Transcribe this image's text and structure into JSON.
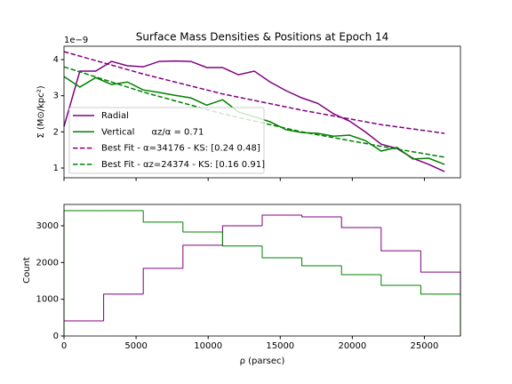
{
  "chart_data": [
    {
      "type": "line",
      "title": "Surface Mass Densities & Positions at Epoch 14",
      "ylabel": "Σ (M⊙/kpc²)",
      "offset_text": "1e−9",
      "xlim": [
        0,
        27500
      ],
      "xticks": [
        0,
        5000,
        10000,
        15000,
        20000,
        25000
      ],
      "ylim": [
        0.73,
        4.37
      ],
      "yticks": [
        1,
        2,
        3,
        4
      ],
      "series": [
        {
          "name": "Radial",
          "color": "#800080",
          "style": "solid",
          "x": [
            0,
            1100,
            2200,
            3300,
            4400,
            5500,
            6600,
            7700,
            8800,
            9900,
            11000,
            12100,
            13200,
            14300,
            15400,
            16500,
            17600,
            18700,
            19800,
            20900,
            22000,
            23100,
            24200,
            25300,
            26400
          ],
          "values": [
            2.15,
            3.68,
            3.68,
            3.95,
            3.83,
            3.8,
            3.95,
            3.96,
            3.95,
            3.78,
            3.78,
            3.58,
            3.68,
            3.38,
            3.14,
            2.94,
            2.79,
            2.5,
            2.3,
            2.0,
            1.66,
            1.54,
            1.27,
            1.1,
            0.9
          ]
        },
        {
          "name": "Vertical      αz/α = 0.71",
          "color": "#008000",
          "style": "solid",
          "x": [
            0,
            1100,
            2200,
            3300,
            4400,
            5500,
            6600,
            7700,
            8800,
            9900,
            11000,
            12100,
            13200,
            14300,
            15400,
            16500,
            17600,
            18700,
            19800,
            20900,
            22000,
            23100,
            24200,
            25300,
            26400
          ],
          "values": [
            3.53,
            3.24,
            3.5,
            3.31,
            3.38,
            3.16,
            3.09,
            3.01,
            2.94,
            2.74,
            2.89,
            2.55,
            2.42,
            2.28,
            2.06,
            1.98,
            1.96,
            1.88,
            1.91,
            1.76,
            1.47,
            1.57,
            1.25,
            1.27,
            1.1
          ]
        },
        {
          "name": "Best Fit - α=34176 - KS: [0.24 0.48]",
          "color": "#800080",
          "style": "dashed",
          "x": [
            0,
            5500,
            11000,
            16500,
            22000,
            26400
          ],
          "values": [
            4.22,
            3.6,
            3.05,
            2.6,
            2.2,
            1.96
          ]
        },
        {
          "name": "Best Fit - αz=24374 - KS: [0.16 0.91]",
          "color": "#008000",
          "style": "dashed",
          "x": [
            0,
            5500,
            11000,
            16500,
            22000,
            26400
          ],
          "values": [
            3.8,
            3.1,
            2.5,
            2.0,
            1.6,
            1.3
          ]
        }
      ],
      "legend": "lower left"
    },
    {
      "type": "histogram",
      "xlabel": "ρ (parsec)",
      "ylabel": "Count",
      "xlim": [
        0,
        27500
      ],
      "xticks": [
        0,
        5000,
        10000,
        15000,
        20000,
        25000
      ],
      "ylim": [
        0,
        3580
      ],
      "yticks": [
        0,
        1000,
        2000,
        3000
      ],
      "bins": [
        0,
        2750,
        5500,
        8250,
        11000,
        13750,
        16500,
        19250,
        22000,
        24750,
        27500
      ],
      "series": [
        {
          "color": "#800080",
          "values": [
            410,
            1140,
            1840,
            2470,
            3000,
            3290,
            3240,
            2950,
            2320,
            1740
          ]
        },
        {
          "color": "#008000",
          "values": [
            3410,
            3410,
            3100,
            2830,
            2450,
            2130,
            1910,
            1670,
            1380,
            1140
          ]
        }
      ]
    }
  ]
}
